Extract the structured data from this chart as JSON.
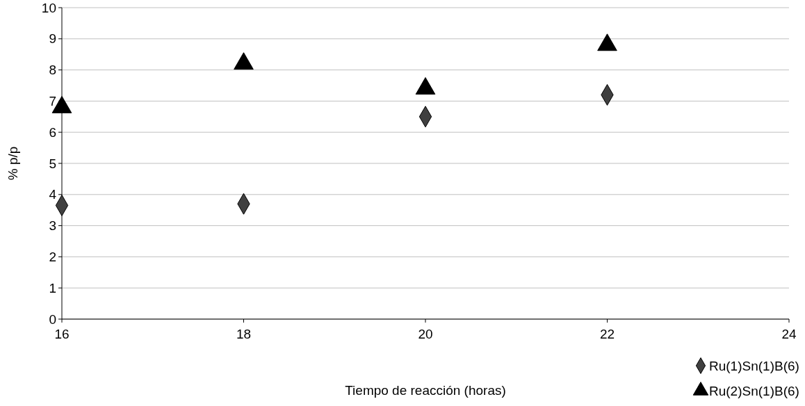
{
  "chart_data": {
    "type": "scatter",
    "xlabel": "Tiempo de reacción (horas)",
    "ylabel": "% p/p",
    "x": [
      16,
      18,
      20,
      22
    ],
    "series": [
      {
        "name": "Ru(1)Sn(1)B(6)",
        "color": "#404040",
        "marker": "diamond",
        "values": [
          3.65,
          3.7,
          6.5,
          7.2
        ]
      },
      {
        "name": "Ru(2)Sn(1)B(6)",
        "color": "#000000",
        "marker": "triangle",
        "values": [
          6.8,
          8.2,
          7.4,
          8.8
        ]
      }
    ],
    "xlim": [
      16,
      24
    ],
    "xticks": [
      16,
      18,
      20,
      22,
      24
    ],
    "ylim": [
      0,
      10
    ],
    "yticks": [
      0,
      1,
      2,
      3,
      4,
      5,
      6,
      7,
      8,
      9,
      10
    ],
    "grid": "y",
    "legend": "bottom right"
  }
}
